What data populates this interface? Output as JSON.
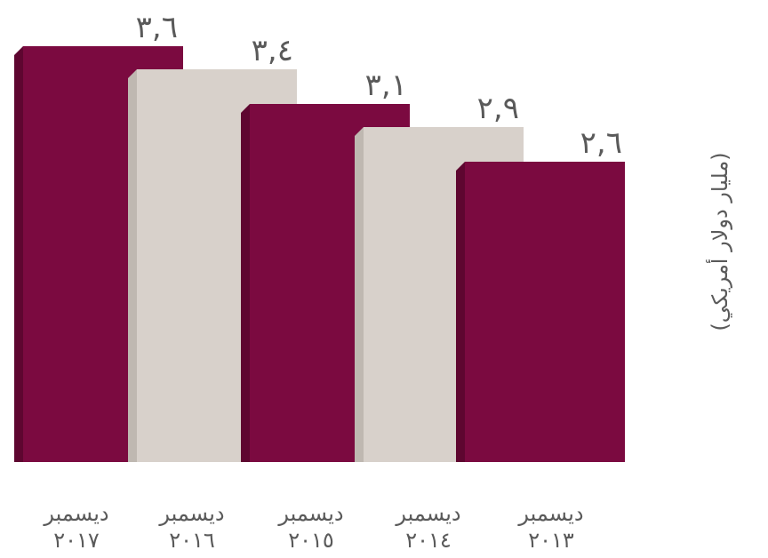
{
  "chart_data": {
    "type": "bar",
    "title": "",
    "xlabel": "",
    "ylabel": "(مليار دولار أمريكي)",
    "ylim": [
      0,
      3.6
    ],
    "categories": [
      [
        "ديسمبر",
        "٢٠١٧"
      ],
      [
        "ديسمبر",
        "٢٠١٦"
      ],
      [
        "ديسمبر",
        "٢٠١٥"
      ],
      [
        "ديسمبر",
        "٢٠١٤"
      ],
      [
        "ديسمبر",
        "٢٠١٣"
      ]
    ],
    "values": [
      3.6,
      3.4,
      3.1,
      2.9,
      2.6
    ],
    "value_labels": [
      "٣,٦",
      "٣,٤",
      "٣,١",
      "٢,٩",
      "٢,٦"
    ],
    "colors": {
      "maroon": "#7b0a40",
      "maroon_shade": "#5e0630",
      "beige": "#d8d1cb",
      "beige_shade": "#bfb8b1",
      "text": "#5a5a5a"
    },
    "bar_colors": [
      "maroon",
      "beige",
      "maroon",
      "beige",
      "maroon"
    ],
    "grid": false,
    "legend": "none"
  }
}
